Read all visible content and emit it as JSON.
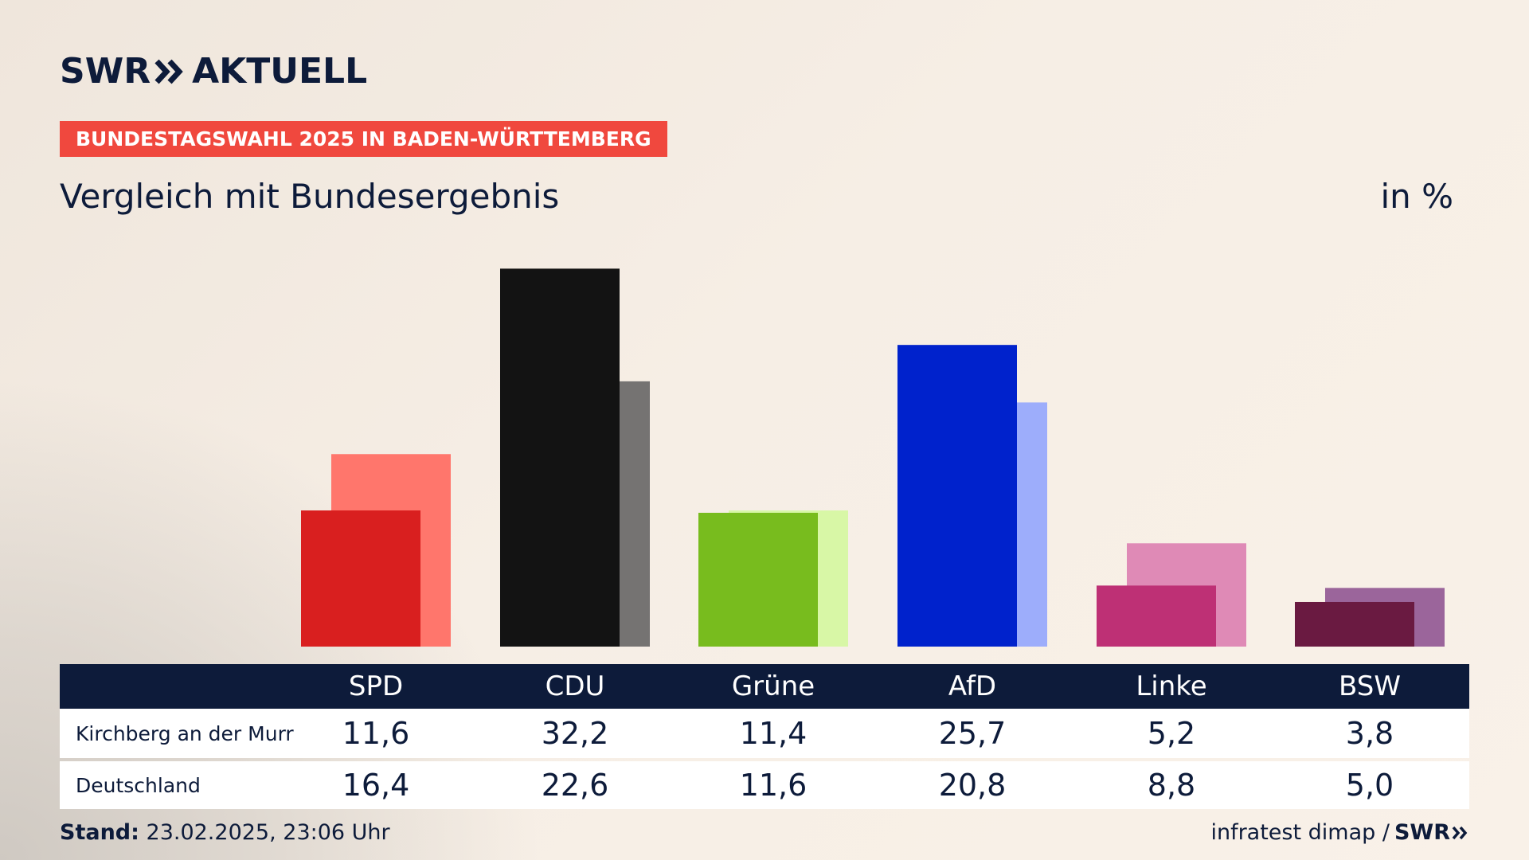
{
  "brand": {
    "logo_left": "SWR",
    "logo_right": "AKTUELL",
    "text_color": "#0d1b3a",
    "accent_color": "#f0483e"
  },
  "header": {
    "topic": "BUNDESTAGSWAHL 2025 IN BADEN-WÜRTTEMBERG",
    "subtitle": "Vergleich mit Bundesergebnis",
    "unit": "in %"
  },
  "chart_data": {
    "type": "bar",
    "categories": [
      "SPD",
      "CDU",
      "Grüne",
      "AfD",
      "Linke",
      "BSW"
    ],
    "series": [
      {
        "name": "Kirchberg an der Murr",
        "values": [
          11.6,
          32.2,
          11.4,
          25.7,
          5.2,
          3.8
        ],
        "labels": [
          "11,6",
          "32,2",
          "11,4",
          "25,7",
          "5,2",
          "3,8"
        ],
        "colors": [
          "#d91f1f",
          "#131313",
          "#78bc1e",
          "#0022cc",
          "#be3075",
          "#6a1a41"
        ]
      },
      {
        "name": "Deutschland",
        "values": [
          16.4,
          22.6,
          11.6,
          20.8,
          8.8,
          5.0
        ],
        "labels": [
          "16,4",
          "22,6",
          "11,6",
          "20,8",
          "8,8",
          "5,0"
        ],
        "colors": [
          "#ff766c",
          "#757372",
          "#d8f7a6",
          "#9dadfb",
          "#df8ab6",
          "#9b659b"
        ]
      }
    ],
    "title": "Vergleich mit Bundesergebnis",
    "unit": "in %",
    "ylim": [
      0,
      34
    ],
    "grid": false,
    "legend": "table-below"
  },
  "footer": {
    "stand_label": "Stand:",
    "stand_value": "23.02.2025, 23:06 Uhr",
    "source": "infratest dimap /",
    "source_logo": "SWR"
  }
}
